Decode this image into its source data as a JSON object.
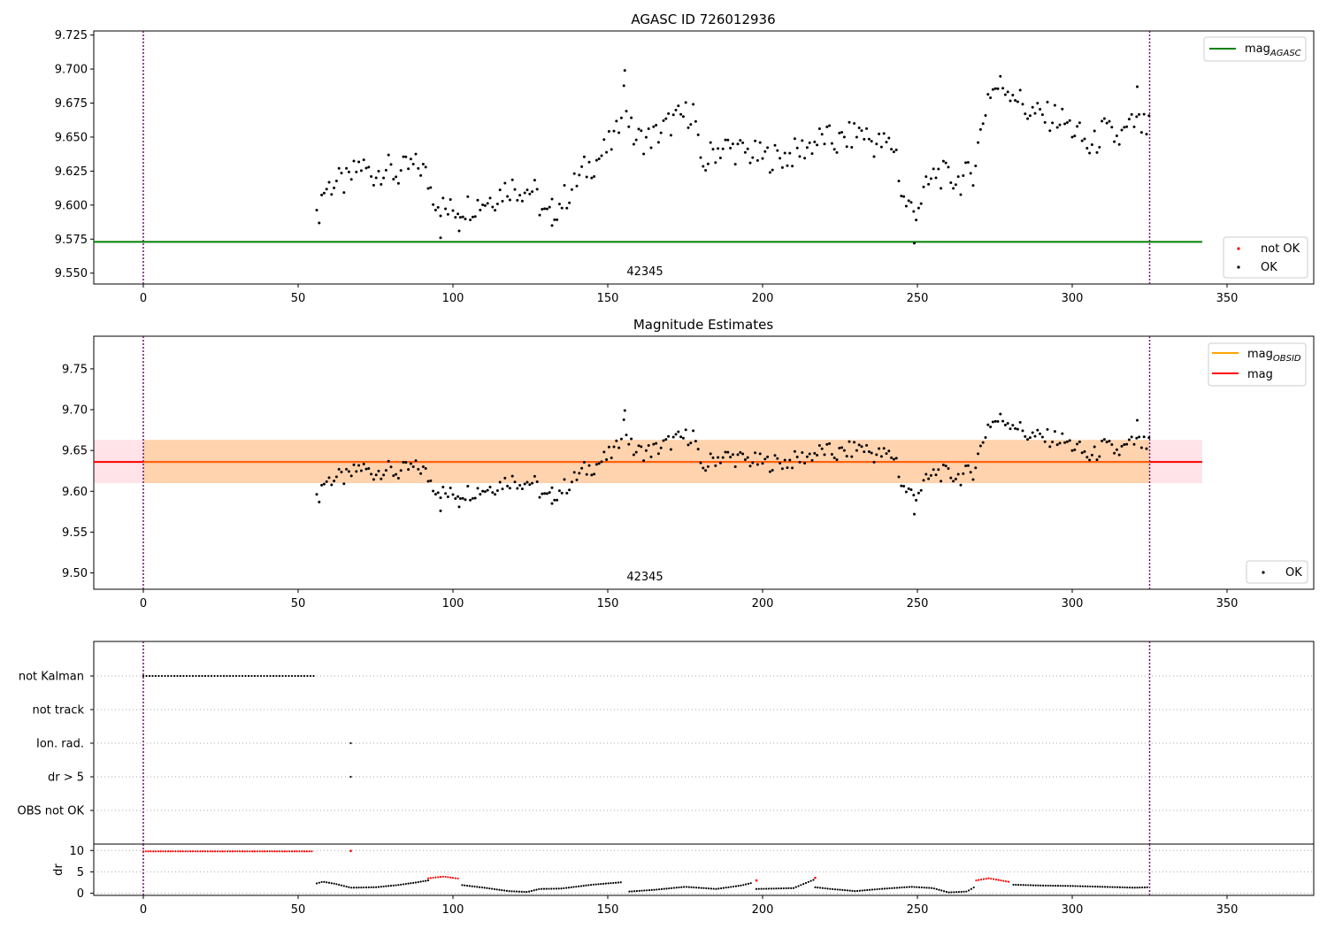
{
  "figure": {
    "x_ticks": [
      0,
      50,
      100,
      150,
      200,
      250,
      300,
      350
    ],
    "obs_start": 0,
    "obs_end": 325
  },
  "chart_data": [
    {
      "type": "scatter",
      "title": "AGASC ID 726012936",
      "xlim": [
        -16,
        378
      ],
      "ylim": [
        9.542,
        9.728
      ],
      "y_ticks": [
        "9.550",
        "9.575",
        "9.600",
        "9.625",
        "9.650",
        "9.675",
        "9.700",
        "9.725"
      ],
      "annotation": "42345",
      "annotation_x": 162,
      "agasc_mag": 9.573,
      "agasc_line_xrange": [
        -16,
        342
      ],
      "legend_top": {
        "position": "top-right",
        "entries": [
          {
            "name": "mag",
            "sub": "AGASC",
            "color": "#008000"
          }
        ]
      },
      "legend_bottom": {
        "position": "lower-right",
        "entries": [
          {
            "name": "not OK",
            "color": "#ff0000"
          },
          {
            "name": "OK",
            "color": "#000000"
          }
        ]
      },
      "series": [
        {
          "name": "OK",
          "color": "#000000"
        }
      ]
    },
    {
      "type": "scatter",
      "title": "Magnitude Estimates",
      "xlim": [
        -16,
        378
      ],
      "ylim": [
        9.48,
        9.79
      ],
      "y_ticks": [
        "9.50",
        "9.55",
        "9.60",
        "9.65",
        "9.70",
        "9.75"
      ],
      "annotation": "42345",
      "annotation_x": 162,
      "mag": 9.636,
      "mag_obsid": 9.636,
      "band_outer": [
        9.61,
        9.663
      ],
      "band_inner": [
        9.61,
        9.663
      ],
      "band_inner_xrange": [
        0,
        325
      ],
      "band_outer_xrange": [
        -16,
        342
      ],
      "legend_top": {
        "position": "top-right",
        "entries": [
          {
            "name": "mag",
            "sub": "OBSID",
            "color": "#ffa500"
          },
          {
            "name": "mag",
            "sub": "",
            "color": "#ff0000"
          }
        ]
      },
      "legend_bottom": {
        "position": "lower-right",
        "entries": [
          {
            "name": "OK",
            "color": "#000000"
          }
        ]
      }
    },
    {
      "type": "scatter",
      "title": "",
      "xlim": [
        -16,
        378
      ],
      "flag_rows": [
        "not Kalman",
        "not track",
        "Ion. rad.",
        "dr > 5",
        "OBS not OK"
      ],
      "flags": {
        "not Kalman": {
          "ranges": [
            [
              0,
              55
            ]
          ],
          "points": []
        },
        "not track": {
          "ranges": [],
          "points": []
        },
        "Ion. rad.": {
          "ranges": [],
          "points": [
            67
          ]
        },
        "dr > 5": {
          "ranges": [],
          "points": [
            67
          ]
        },
        "OBS not OK": {
          "ranges": [],
          "points": []
        }
      }
    },
    {
      "type": "scatter",
      "title": "",
      "ylabel": "dr",
      "xlim": [
        -16,
        378
      ],
      "ylim": [
        -0.5,
        11.5
      ],
      "y_ticks": [
        "0",
        "5",
        "10"
      ],
      "dr_segments": [
        {
          "x": [
            0,
            55
          ],
          "y": [
            9.8,
            9.8
          ],
          "color": "#ff0000"
        },
        {
          "x": [
            56,
            58,
            62,
            67,
            75,
            82,
            88,
            92
          ],
          "y": [
            2.3,
            2.7,
            2.2,
            1.3,
            1.4,
            1.9,
            2.5,
            3.0
          ],
          "color": "#000000"
        },
        {
          "x": [
            92,
            97,
            102
          ],
          "y": [
            3.5,
            3.9,
            3.4
          ],
          "color": "#ff0000"
        },
        {
          "x": [
            103,
            110,
            118,
            124,
            128,
            135,
            145,
            155
          ],
          "y": [
            1.9,
            1.3,
            0.5,
            0.3,
            1.0,
            1.1,
            2.0,
            2.6
          ],
          "color": "#000000"
        },
        {
          "x": [
            157,
            165,
            175,
            185,
            193,
            197
          ],
          "y": [
            0.4,
            0.8,
            1.5,
            1.0,
            1.8,
            2.5
          ],
          "color": "#000000"
        },
        {
          "x": [
            198,
            210,
            217
          ],
          "y": [
            1.0,
            1.2,
            3.3
          ],
          "color": "#000000"
        },
        {
          "x": [
            217,
            222,
            230,
            238,
            248,
            255,
            260,
            266,
            269
          ],
          "y": [
            1.4,
            1.0,
            0.5,
            1.0,
            1.5,
            1.2,
            0.2,
            0.4,
            1.7
          ],
          "color": "#000000"
        },
        {
          "x": [
            269,
            273,
            280
          ],
          "y": [
            3.0,
            3.5,
            2.6
          ],
          "color": "#ff0000"
        },
        {
          "x": [
            281,
            290,
            300,
            310,
            320,
            325
          ],
          "y": [
            2.0,
            1.8,
            1.7,
            1.5,
            1.3,
            1.4
          ],
          "color": "#000000"
        }
      ],
      "dr_red_extra": [
        [
          67,
          9.9
        ],
        [
          198,
          3.0
        ],
        [
          217,
          3.6
        ]
      ]
    }
  ]
}
